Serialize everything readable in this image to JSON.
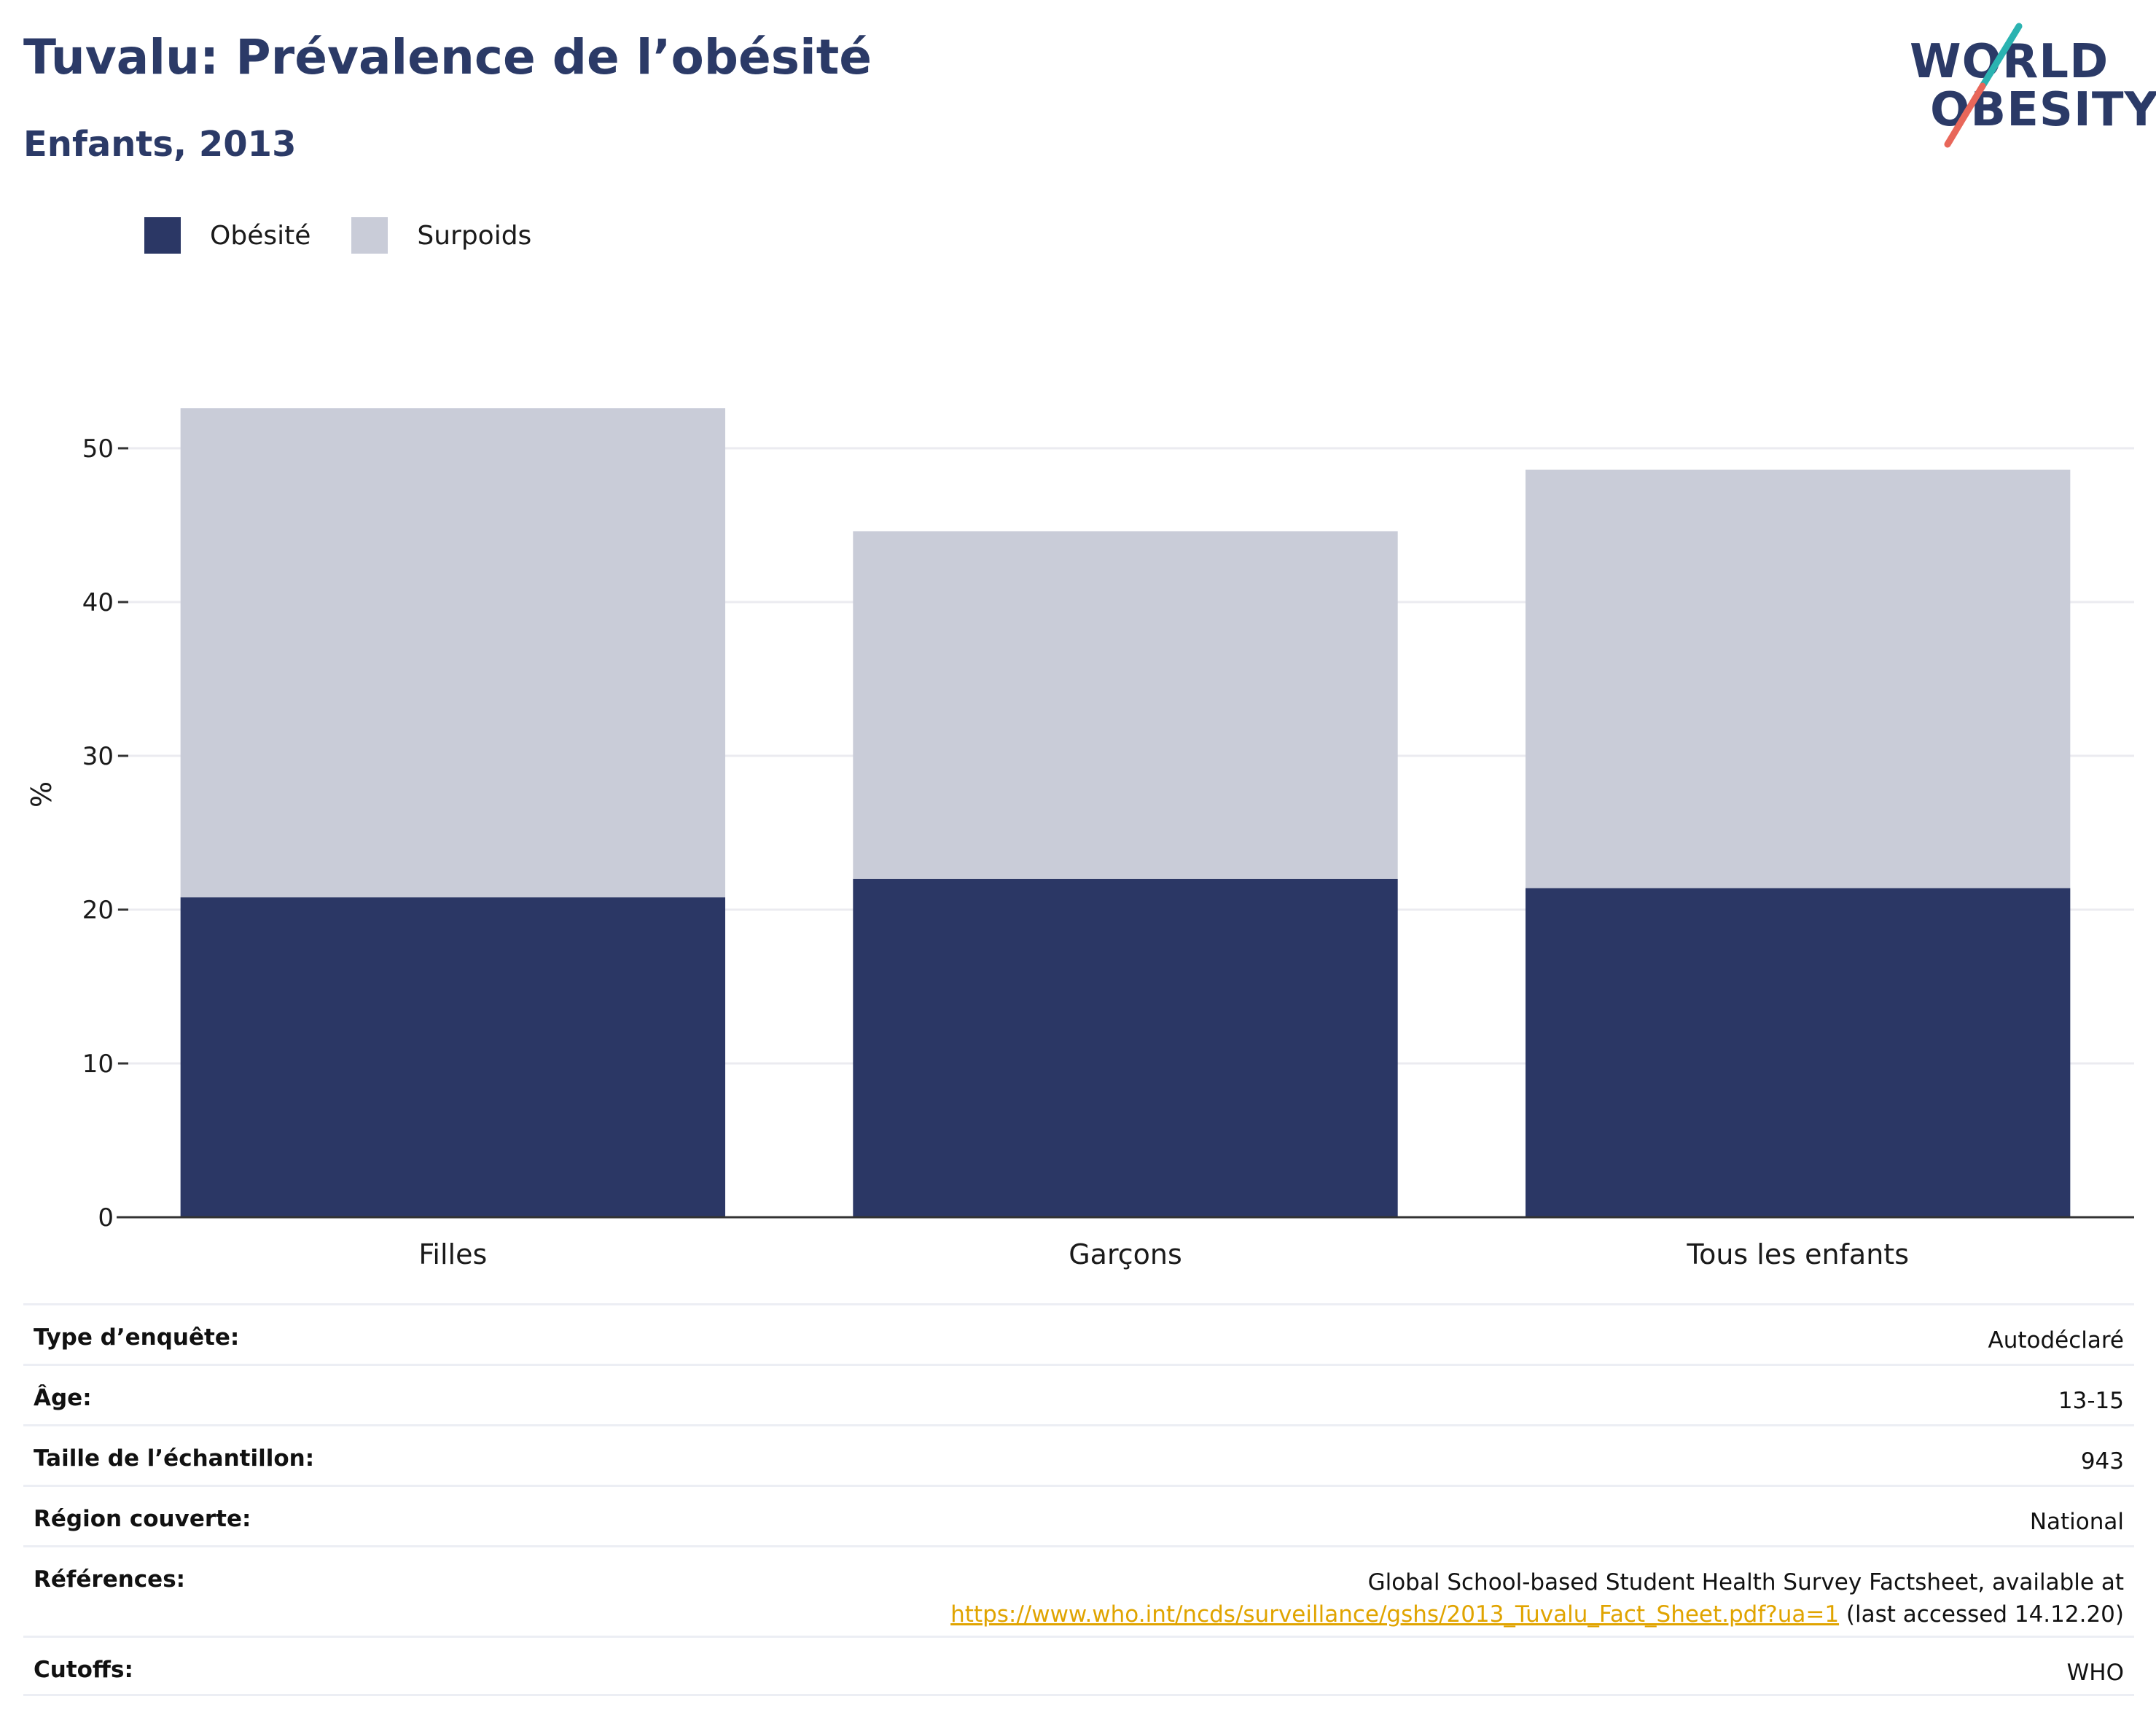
{
  "header": {
    "title": "Tuvalu: Prévalence de l’obésité",
    "subtitle": "Enfants, 2013"
  },
  "logo": {
    "line1": "WORLD",
    "line2": "OBESITY",
    "accent_teal": "#2bb3b1",
    "accent_coral": "#e8675a"
  },
  "legend": {
    "items": [
      {
        "label": "Obésité",
        "color": "#2b3765"
      },
      {
        "label": "Surpoids",
        "color": "#c9ccd8"
      }
    ]
  },
  "chart_data": {
    "type": "bar",
    "stacked": true,
    "categories": [
      "Filles",
      "Garçons",
      "Tous les enfants"
    ],
    "series": [
      {
        "name": "Obésité",
        "values": [
          20.8,
          22.0,
          21.4
        ],
        "color": "#2b3765"
      },
      {
        "name": "Surpoids",
        "values": [
          31.8,
          22.6,
          27.2
        ],
        "color": "#c9ccd8"
      }
    ],
    "ylabel": "%",
    "ylim": [
      0,
      55
    ],
    "yticks": [
      0,
      10,
      20,
      30,
      40,
      50
    ],
    "grid": true,
    "legend_position": "top-left"
  },
  "info": {
    "survey_type": {
      "label": "Type d’enquête:",
      "value": "Autodéclaré"
    },
    "age": {
      "label": "Âge:",
      "value": "13-15"
    },
    "sample_size": {
      "label": "Taille de l’échantillon:",
      "value": "943"
    },
    "region": {
      "label": "Région couverte:",
      "value": "National"
    },
    "references": {
      "label": "Références:",
      "text": "Global School-based Student Health Survey Factsheet, available at",
      "link": "https://www.who.int/ncds/surveillance/gshs/2013_Tuvalu_Fact_Sheet.pdf?ua=1",
      "suffix": " (last accessed 14.12.20)"
    },
    "cutoffs": {
      "label": "Cutoffs:",
      "value": "WHO"
    }
  }
}
